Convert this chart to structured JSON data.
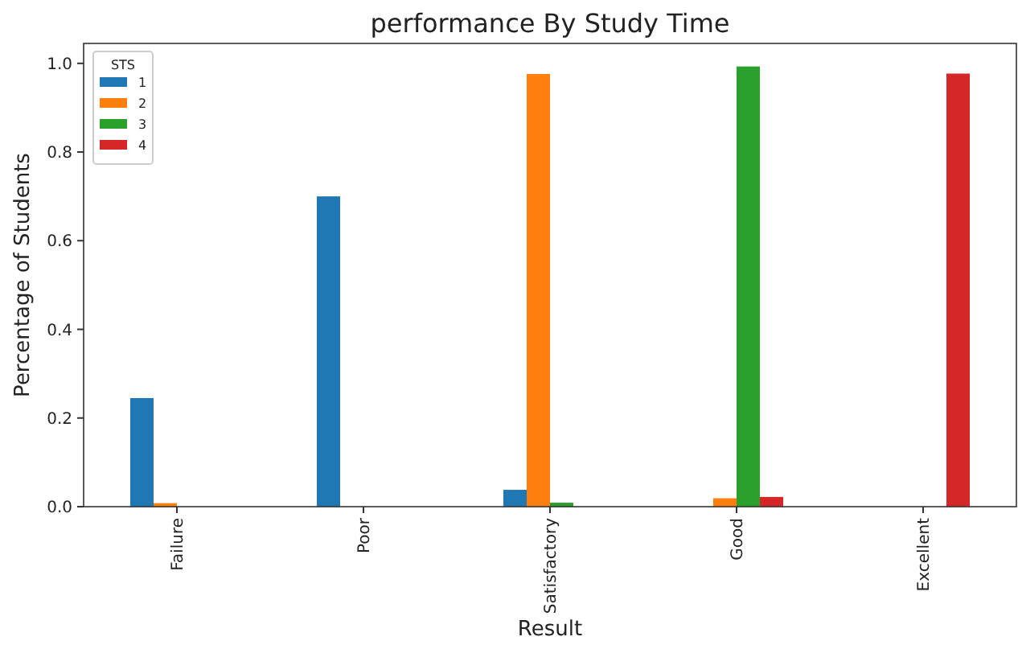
{
  "chart_data": {
    "type": "bar",
    "title": "performance By Study Time",
    "xlabel": "Result",
    "ylabel": "Percentage of Students",
    "legend_title": "STS",
    "categories": [
      "Failure",
      "Poor",
      "Satisfactory",
      "Good",
      "Excellent"
    ],
    "series": [
      {
        "name": "1",
        "color": "#1f77b4",
        "values": [
          0.245,
          0.7,
          0.038,
          null,
          null
        ]
      },
      {
        "name": "2",
        "color": "#ff7f0e",
        "values": [
          0.008,
          null,
          0.976,
          0.019,
          null
        ]
      },
      {
        "name": "3",
        "color": "#2ca02c",
        "values": [
          null,
          null,
          0.009,
          0.993,
          null
        ]
      },
      {
        "name": "4",
        "color": "#d62728",
        "values": [
          null,
          null,
          null,
          0.022,
          0.977
        ]
      }
    ],
    "ylim": [
      0,
      1.045
    ],
    "yticks": [
      {
        "value": 0,
        "label": "0.0"
      },
      {
        "value": 0.2,
        "label": "0.2"
      },
      {
        "value": 0.4,
        "label": "0.4"
      },
      {
        "value": 0.6,
        "label": "0.6"
      },
      {
        "value": 0.8,
        "label": "0.8"
      },
      {
        "value": 1,
        "label": "1.0"
      }
    ],
    "grid": false,
    "legend": "top left"
  }
}
